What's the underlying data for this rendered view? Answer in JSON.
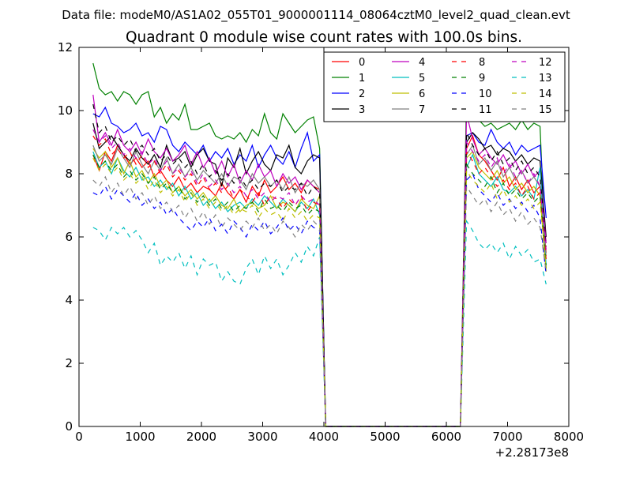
{
  "chart_data": {
    "type": "line",
    "suptitle": "Data file: modeM0/AS1A02_055T01_9000001114_08064cztM0_level2_quad_clean.evt",
    "title": "Quadrant 0 module wise count rates with 100.0s bins.",
    "xlabel": "",
    "ylabel": "",
    "x_offset_label": "+2.28173e8",
    "xlim": [
      0,
      8000
    ],
    "ylim": [
      0,
      12
    ],
    "xticks": [
      0,
      1000,
      2000,
      3000,
      4000,
      5000,
      6000,
      7000,
      8000
    ],
    "yticks": [
      0,
      2,
      4,
      6,
      8,
      10,
      12
    ],
    "grid": false,
    "legend": {
      "placement": "top-right",
      "columns": 4
    },
    "segments": [
      {
        "x_start": 230,
        "x_end": 3930,
        "step": 100
      },
      {
        "x_start": 4030,
        "x_end": 6230,
        "step": 100
      },
      {
        "x_start": 6330,
        "x_end": 7630,
        "step": 100
      }
    ],
    "series": [
      {
        "name": "0",
        "color": "#ff0000",
        "dash": "solid",
        "seg1": [
          8.6,
          8.1,
          8.7,
          8.4,
          8.9,
          8.6,
          8.3,
          8.5,
          8.2,
          8.4,
          7.9,
          8.1,
          7.8,
          7.6,
          7.9,
          7.5,
          7.7,
          7.4,
          7.6,
          7.5,
          7.3,
          7.7,
          7.4,
          7.2,
          7.5,
          7.1,
          7.6,
          7.3,
          7.8,
          7.4,
          7.6,
          7.9,
          7.5,
          7.7,
          7.4,
          7.8,
          7.6,
          7.5
        ],
        "seg3": [
          8.8,
          9.2,
          8.6,
          8.4,
          8.1,
          7.8,
          8.2,
          7.6,
          7.9,
          7.5,
          7.8,
          7.4,
          7.6,
          5.5
        ]
      },
      {
        "name": "1",
        "color": "#008000",
        "dash": "solid",
        "seg1": [
          11.5,
          10.7,
          10.5,
          10.6,
          10.3,
          10.6,
          10.5,
          10.2,
          10.5,
          10.6,
          9.8,
          10.1,
          9.6,
          9.9,
          9.7,
          10.2,
          9.4,
          9.4,
          9.5,
          9.6,
          9.2,
          9.1,
          9.2,
          9.1,
          9.3,
          9.0,
          9.4,
          9.2,
          9.9,
          9.3,
          9.1,
          9.9,
          9.6,
          9.3,
          9.5,
          9.7,
          9.8,
          8.8
        ],
        "seg3": [
          10.6,
          9.8,
          9.7,
          9.5,
          9.6,
          9.4,
          9.5,
          9.6,
          9.4,
          9.7,
          9.4,
          9.6,
          9.5,
          5.0
        ]
      },
      {
        "name": "2",
        "color": "#0000ff",
        "dash": "solid",
        "seg1": [
          9.9,
          9.8,
          10.1,
          9.6,
          9.5,
          9.3,
          9.4,
          9.6,
          9.2,
          9.3,
          9.0,
          9.5,
          9.4,
          8.9,
          8.7,
          9.0,
          8.8,
          8.6,
          8.9,
          8.4,
          8.7,
          8.5,
          8.8,
          8.3,
          8.6,
          8.4,
          8.9,
          8.2,
          8.6,
          8.9,
          8.5,
          8.3,
          8.7,
          8.2,
          8.8,
          9.3,
          8.4,
          8.6
        ],
        "seg3": [
          9.2,
          9.3,
          9.0,
          8.9,
          9.4,
          9.0,
          8.8,
          9.0,
          8.6,
          8.9,
          8.7,
          8.8,
          8.9,
          6.6
        ]
      },
      {
        "name": "3",
        "color": "#000000",
        "dash": "solid",
        "seg1": [
          9.6,
          8.8,
          9.0,
          9.2,
          8.9,
          8.6,
          8.4,
          8.8,
          8.5,
          8.3,
          8.6,
          8.2,
          8.9,
          8.4,
          8.5,
          8.7,
          8.2,
          8.6,
          8.8,
          8.4,
          8.3,
          7.6,
          8.5,
          8.2,
          8.8,
          8.0,
          8.4,
          8.7,
          8.3,
          8.1,
          8.6,
          8.5,
          8.9,
          8.2,
          8.0,
          8.4,
          8.6,
          8.5
        ],
        "seg3": [
          9.0,
          9.3,
          9.1,
          8.8,
          8.9,
          8.6,
          8.8,
          8.7,
          8.4,
          8.6,
          8.3,
          8.5,
          8.4,
          6.0
        ]
      },
      {
        "name": "4",
        "color": "#bf00bf",
        "dash": "solid",
        "seg1": [
          10.5,
          9.0,
          9.3,
          8.9,
          9.4,
          8.9,
          8.7,
          9.0,
          8.6,
          9.1,
          8.7,
          8.5,
          8.8,
          8.4,
          8.6,
          8.9,
          8.3,
          8.7,
          8.2,
          8.5,
          8.0,
          8.4,
          7.9,
          8.3,
          7.7,
          8.1,
          7.8,
          8.3,
          7.9,
          8.1,
          7.6,
          8.0,
          7.7,
          7.9,
          7.5,
          7.8,
          7.6,
          7.4
        ],
        "seg3": [
          9.9,
          9.1,
          8.6,
          8.8,
          8.5,
          8.3,
          8.6,
          8.2,
          8.4,
          8.0,
          8.3,
          7.9,
          8.1,
          5.8
        ]
      },
      {
        "name": "5",
        "color": "#00bfbf",
        "dash": "solid",
        "seg1": [
          8.7,
          8.2,
          8.4,
          8.0,
          8.5,
          8.1,
          7.9,
          8.2,
          7.8,
          7.9,
          7.6,
          7.8,
          7.5,
          7.7,
          7.3,
          7.6,
          7.2,
          7.4,
          7.0,
          7.2,
          6.9,
          7.1,
          6.8,
          7.0,
          7.1,
          6.9,
          7.2,
          7.0,
          7.3,
          7.1,
          6.9,
          7.2,
          7.0,
          6.8,
          7.1,
          6.9,
          7.2,
          6.7
        ],
        "seg3": [
          8.2,
          8.6,
          8.0,
          7.8,
          7.6,
          7.9,
          7.5,
          7.4,
          7.6,
          7.3,
          7.5,
          7.2,
          8.2,
          5.1
        ]
      },
      {
        "name": "6",
        "color": "#bfbf00",
        "dash": "solid",
        "seg1": [
          8.8,
          8.5,
          8.7,
          8.2,
          8.5,
          8.0,
          8.4,
          7.9,
          8.1,
          7.7,
          8.0,
          7.6,
          7.8,
          7.4,
          7.6,
          7.3,
          7.5,
          7.2,
          7.4,
          7.1,
          7.3,
          7.0,
          6.9,
          7.2,
          6.8,
          7.0,
          7.1,
          6.9,
          7.0,
          7.3,
          6.9,
          7.1,
          7.0,
          6.8,
          7.2,
          7.0,
          6.9,
          7.3
        ],
        "seg3": [
          8.5,
          8.7,
          8.2,
          8.0,
          7.8,
          8.1,
          7.7,
          7.9,
          7.5,
          7.7,
          7.4,
          7.6,
          7.3,
          4.9
        ]
      },
      {
        "name": "7",
        "color": "#808080",
        "dash": "solid",
        "seg1": [
          8.9,
          8.4,
          8.6,
          8.3,
          8.8,
          8.5,
          8.2,
          8.7,
          8.3,
          8.0,
          8.4,
          8.1,
          8.5,
          8.0,
          8.3,
          7.9,
          8.2,
          7.8,
          8.1,
          7.9,
          7.7,
          8.0,
          7.6,
          7.9,
          7.8,
          7.5,
          8.0,
          7.7,
          7.9,
          7.6,
          7.8,
          7.5,
          7.9,
          7.4,
          7.7,
          7.6,
          7.8,
          7.5
        ],
        "seg3": [
          8.6,
          8.9,
          8.3,
          8.5,
          8.1,
          8.4,
          7.9,
          8.2,
          7.8,
          8.1,
          7.7,
          7.9,
          7.6,
          5.4
        ]
      },
      {
        "name": "8",
        "color": "#ff0000",
        "dash": "dashed",
        "seg1": [
          9.2,
          8.9,
          9.1,
          8.6,
          8.8,
          8.5,
          8.7,
          8.3,
          8.6,
          8.2,
          8.4,
          8.0,
          8.3,
          7.9,
          8.1,
          7.8,
          8.0,
          7.6,
          7.9,
          7.5,
          7.7,
          7.4,
          7.6,
          7.2,
          7.5,
          7.3,
          7.1,
          7.4,
          7.0,
          7.3,
          7.2,
          6.9,
          7.2,
          7.0,
          7.3,
          6.8,
          7.1,
          7.0
        ],
        "seg3": [
          8.7,
          8.4,
          8.0,
          8.2,
          7.9,
          7.6,
          7.8,
          7.5,
          7.7,
          7.3,
          7.6,
          7.2,
          7.4,
          5.3
        ]
      },
      {
        "name": "9",
        "color": "#008000",
        "dash": "dashed",
        "seg1": [
          8.6,
          8.2,
          8.4,
          8.1,
          8.3,
          7.9,
          8.1,
          7.8,
          8.0,
          7.7,
          7.9,
          7.5,
          7.7,
          7.4,
          7.6,
          7.2,
          7.4,
          7.1,
          7.3,
          7.0,
          7.2,
          6.9,
          7.1,
          6.8,
          7.0,
          6.9,
          7.1,
          6.8,
          7.2,
          6.9,
          7.0,
          6.8,
          7.1,
          6.9,
          7.0,
          6.7,
          6.9,
          6.8
        ],
        "seg3": [
          8.3,
          8.0,
          7.8,
          7.6,
          7.9,
          7.4,
          7.7,
          7.3,
          7.5,
          7.2,
          7.4,
          7.1,
          7.3,
          5.1
        ]
      },
      {
        "name": "10",
        "color": "#0000ff",
        "dash": "dashed",
        "seg1": [
          7.4,
          7.3,
          7.6,
          7.2,
          7.5,
          7.3,
          7.1,
          7.4,
          7.0,
          7.2,
          6.9,
          7.1,
          6.7,
          6.9,
          6.6,
          6.4,
          6.2,
          6.5,
          6.3,
          6.6,
          6.2,
          6.4,
          6.1,
          6.5,
          6.3,
          6.0,
          6.4,
          6.2,
          6.5,
          6.1,
          6.3,
          6.6,
          6.2,
          6.4,
          6.1,
          6.5,
          6.3,
          6.2
        ],
        "seg3": [
          7.8,
          8.0,
          7.5,
          7.3,
          7.1,
          7.4,
          7.0,
          7.2,
          6.9,
          7.1,
          6.8,
          7.0,
          6.6,
          4.8
        ]
      },
      {
        "name": "11",
        "color": "#000000",
        "dash": "dashed",
        "seg1": [
          10.2,
          9.3,
          9.5,
          9.0,
          9.2,
          8.9,
          9.1,
          8.7,
          8.9,
          8.6,
          8.8,
          8.4,
          8.6,
          8.3,
          8.5,
          8.2,
          8.4,
          8.0,
          8.3,
          7.9,
          8.1,
          7.8,
          8.0,
          7.7,
          7.9,
          7.6,
          7.8,
          7.5,
          7.7,
          7.6,
          7.8,
          7.4,
          7.6,
          7.5,
          7.7,
          7.3,
          7.6,
          7.4
        ],
        "seg3": [
          9.3,
          8.9,
          8.6,
          8.8,
          8.4,
          8.7,
          8.3,
          8.5,
          8.1,
          8.4,
          8.0,
          8.2,
          7.9,
          5.7
        ]
      },
      {
        "name": "12",
        "color": "#bf00bf",
        "dash": "dashed",
        "seg1": [
          9.4,
          9.0,
          9.2,
          8.8,
          9.0,
          8.6,
          8.8,
          8.5,
          8.7,
          8.3,
          8.5,
          8.1,
          8.4,
          8.0,
          8.2,
          7.9,
          8.1,
          7.7,
          8.0,
          7.6,
          7.8,
          7.5,
          7.7,
          7.4,
          7.6,
          7.3,
          7.5,
          7.2,
          7.4,
          7.1,
          7.3,
          7.2,
          7.4,
          7.0,
          7.3,
          7.1,
          7.2,
          7.0
        ],
        "seg3": [
          9.0,
          8.7,
          8.4,
          8.6,
          8.2,
          8.5,
          8.0,
          8.3,
          7.9,
          8.1,
          7.7,
          8.0,
          7.6,
          5.6
        ]
      },
      {
        "name": "13",
        "color": "#00bfbf",
        "dash": "dashed",
        "seg1": [
          6.3,
          6.2,
          5.9,
          6.3,
          6.1,
          6.3,
          6.0,
          6.2,
          5.9,
          5.5,
          5.8,
          5.1,
          5.4,
          5.2,
          5.5,
          5.0,
          5.4,
          4.8,
          5.3,
          5.1,
          5.2,
          4.6,
          4.9,
          4.6,
          4.5,
          5.0,
          5.3,
          4.8,
          5.4,
          5.0,
          5.3,
          4.8,
          5.1,
          5.5,
          5.2,
          5.7,
          5.4,
          6.0
        ],
        "seg3": [
          6.5,
          6.2,
          5.8,
          5.6,
          5.8,
          5.5,
          5.8,
          5.3,
          5.7,
          5.4,
          5.6,
          5.2,
          5.3,
          4.5
        ]
      },
      {
        "name": "14",
        "color": "#bfbf00",
        "dash": "dashed",
        "seg1": [
          8.5,
          8.1,
          8.3,
          8.0,
          8.2,
          7.8,
          8.0,
          7.7,
          7.9,
          7.5,
          7.8,
          7.4,
          7.6,
          7.3,
          7.5,
          7.1,
          7.4,
          7.0,
          7.2,
          6.9,
          7.1,
          6.8,
          7.0,
          6.7,
          6.9,
          6.8,
          7.0,
          6.6,
          6.9,
          6.7,
          6.8,
          6.5,
          6.9,
          6.6,
          6.8,
          6.5,
          6.7,
          6.6
        ],
        "seg3": [
          8.1,
          7.8,
          7.6,
          7.4,
          7.7,
          7.2,
          7.5,
          7.1,
          7.3,
          7.0,
          7.2,
          6.9,
          7.1,
          5.0
        ]
      },
      {
        "name": "15",
        "color": "#808080",
        "dash": "dashed",
        "seg1": [
          7.8,
          7.6,
          7.9,
          7.4,
          7.7,
          7.3,
          7.6,
          7.2,
          7.4,
          7.0,
          7.3,
          6.9,
          7.1,
          6.8,
          7.0,
          6.6,
          6.9,
          6.5,
          6.8,
          6.4,
          6.7,
          6.3,
          6.6,
          6.4,
          6.2,
          6.5,
          6.3,
          6.6,
          6.2,
          6.4,
          6.1,
          6.5,
          6.3,
          6.0,
          6.4,
          6.2,
          6.5,
          6.3
        ],
        "seg3": [
          7.6,
          7.3,
          7.0,
          7.2,
          6.8,
          7.1,
          6.7,
          6.9,
          6.5,
          6.8,
          6.4,
          6.6,
          6.3,
          4.9
        ]
      }
    ]
  }
}
